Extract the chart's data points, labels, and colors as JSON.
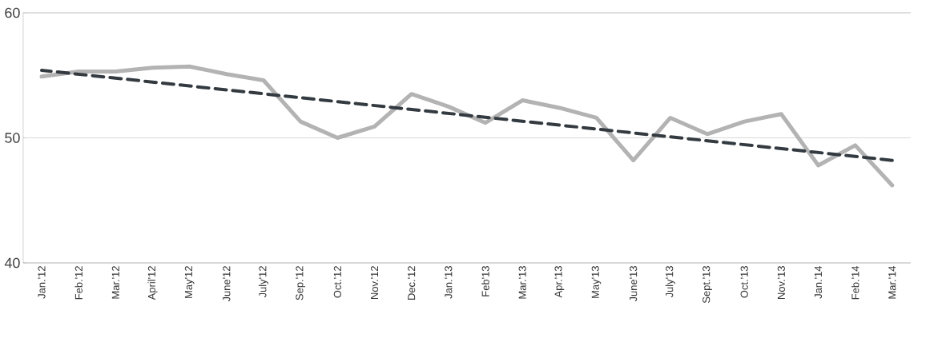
{
  "chart_data": {
    "type": "line",
    "categories": [
      "Jan.'12",
      "Feb.'12",
      "Mar.'12",
      "April'12",
      "May'12",
      "June'12",
      "July'12",
      "Sep.'12",
      "Oct.'12",
      "Nov.'12",
      "Dec.'12",
      "Jan.'13",
      "Feb'13",
      "Mar.'13",
      "Apr.'13",
      "May'13",
      "June'13",
      "July'13",
      "Sept.'13",
      "Oct.'13",
      "Nov.'13",
      "Jan.'14",
      "Feb.'14",
      "Mar.'14"
    ],
    "series": [
      {
        "color": "#b3b3b3",
        "line_style": "solid",
        "values": [
          54.9,
          55.3,
          55.3,
          55.6,
          55.7,
          55.1,
          54.6,
          51.3,
          50.0,
          50.9,
          53.5,
          52.5,
          51.2,
          53.0,
          52.4,
          51.6,
          48.2,
          51.6,
          50.3,
          51.3,
          51.9,
          47.8,
          49.4,
          46.2
        ]
      },
      {
        "color": "#333a40",
        "line_style": "dashed",
        "values": [
          55.4,
          null,
          null,
          null,
          null,
          null,
          null,
          null,
          null,
          null,
          null,
          null,
          null,
          null,
          null,
          null,
          null,
          null,
          null,
          null,
          null,
          null,
          null,
          48.2
        ]
      }
    ],
    "ylim": [
      40,
      60
    ],
    "yticks": [
      40,
      50,
      60
    ],
    "grid": "y",
    "marker": "none"
  }
}
